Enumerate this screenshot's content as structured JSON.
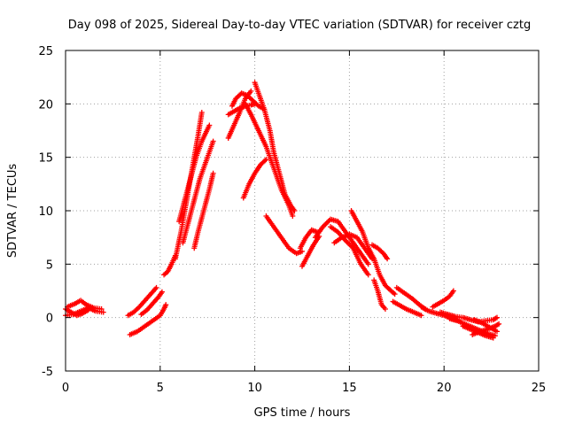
{
  "chart_data": {
    "type": "scatter",
    "title": "Day 098 of 2025, Sidereal Day-to-day VTEC variation (SDTVAR) for receiver cztg",
    "xlabel": "GPS time / hours",
    "ylabel": "SDTVAR / TECUs",
    "xlim": [
      0,
      25
    ],
    "ylim": [
      -5,
      25
    ],
    "xticks": [
      0,
      5,
      10,
      15,
      20,
      25
    ],
    "yticks": [
      -5,
      0,
      5,
      10,
      15,
      20,
      25
    ],
    "grid": true,
    "marker": "+",
    "color": "#ff0000",
    "series": [
      {
        "name": "SDTVAR",
        "tracks": [
          [
            [
              0.0,
              0.2
            ],
            [
              0.4,
              0.3
            ],
            [
              0.8,
              0.6
            ],
            [
              1.2,
              0.9
            ],
            [
              1.6,
              0.6
            ],
            [
              2.0,
              0.5
            ]
          ],
          [
            [
              0.0,
              0.8
            ],
            [
              0.3,
              0.5
            ],
            [
              0.6,
              0.2
            ],
            [
              0.9,
              0.4
            ],
            [
              1.2,
              0.7
            ]
          ],
          [
            [
              0.1,
              1.0
            ],
            [
              0.5,
              1.3
            ],
            [
              0.8,
              1.6
            ],
            [
              1.1,
              1.2
            ],
            [
              1.5,
              0.9
            ],
            [
              1.9,
              0.8
            ]
          ],
          [
            [
              3.3,
              0.2
            ],
            [
              3.6,
              0.5
            ],
            [
              3.9,
              1.0
            ],
            [
              4.2,
              1.6
            ],
            [
              4.5,
              2.2
            ],
            [
              4.8,
              2.8
            ]
          ],
          [
            [
              3.4,
              -1.6
            ],
            [
              3.8,
              -1.3
            ],
            [
              4.2,
              -0.8
            ],
            [
              4.6,
              -0.3
            ],
            [
              5.0,
              0.2
            ],
            [
              5.2,
              0.8
            ],
            [
              5.3,
              1.2
            ]
          ],
          [
            [
              4.0,
              0.3
            ],
            [
              4.3,
              0.7
            ],
            [
              4.6,
              1.3
            ],
            [
              4.9,
              1.9
            ],
            [
              5.1,
              2.4
            ]
          ],
          [
            [
              5.2,
              4.0
            ],
            [
              5.4,
              4.3
            ],
            [
              5.6,
              5.0
            ],
            [
              5.8,
              5.8
            ]
          ],
          [
            [
              5.8,
              5.5
            ],
            [
              6.1,
              8.0
            ],
            [
              6.4,
              11.0
            ],
            [
              6.7,
              14.0
            ],
            [
              7.0,
              17.0
            ],
            [
              7.2,
              19.2
            ]
          ],
          [
            [
              6.0,
              9.0
            ],
            [
              6.3,
              11.0
            ],
            [
              6.6,
              13.0
            ],
            [
              6.9,
              15.0
            ],
            [
              7.2,
              16.5
            ],
            [
              7.6,
              18.0
            ]
          ],
          [
            [
              6.2,
              7.0
            ],
            [
              6.5,
              9.0
            ],
            [
              6.8,
              11.0
            ],
            [
              7.1,
              13.0
            ],
            [
              7.5,
              15.0
            ],
            [
              7.8,
              16.5
            ]
          ],
          [
            [
              6.8,
              6.5
            ],
            [
              7.0,
              8.0
            ],
            [
              7.3,
              10.0
            ],
            [
              7.6,
              12.0
            ],
            [
              7.8,
              13.5
            ]
          ],
          [
            [
              8.6,
              16.8
            ],
            [
              8.9,
              18.0
            ],
            [
              9.2,
              19.2
            ],
            [
              9.5,
              20.5
            ],
            [
              9.8,
              21.2
            ]
          ],
          [
            [
              8.8,
              19.8
            ],
            [
              9.0,
              20.5
            ],
            [
              9.3,
              21.0
            ],
            [
              9.6,
              20.8
            ],
            [
              9.9,
              20.3
            ],
            [
              10.2,
              19.8
            ],
            [
              10.5,
              19.5
            ]
          ],
          [
            [
              8.6,
              19.0
            ],
            [
              8.9,
              19.3
            ],
            [
              9.2,
              19.6
            ],
            [
              9.5,
              19.8
            ],
            [
              9.8,
              19.9
            ],
            [
              10.0,
              20.0
            ]
          ],
          [
            [
              9.4,
              11.2
            ],
            [
              9.7,
              12.5
            ],
            [
              10.0,
              13.5
            ],
            [
              10.3,
              14.3
            ],
            [
              10.6,
              14.8
            ]
          ],
          [
            [
              9.5,
              20.0
            ],
            [
              9.8,
              19.0
            ],
            [
              10.2,
              17.5
            ],
            [
              10.6,
              16.0
            ],
            [
              11.0,
              14.0
            ],
            [
              11.4,
              12.0
            ],
            [
              11.8,
              10.5
            ],
            [
              12.0,
              9.5
            ]
          ],
          [
            [
              10.0,
              22.0
            ],
            [
              10.2,
              21.0
            ],
            [
              10.5,
              19.5
            ],
            [
              10.8,
              17.5
            ],
            [
              11.0,
              15.5
            ],
            [
              11.3,
              13.5
            ],
            [
              11.6,
              11.5
            ],
            [
              11.9,
              10.5
            ],
            [
              12.1,
              10.0
            ]
          ],
          [
            [
              10.6,
              9.5
            ],
            [
              11.0,
              8.5
            ],
            [
              11.4,
              7.5
            ],
            [
              11.8,
              6.5
            ],
            [
              12.2,
              6.0
            ],
            [
              12.5,
              6.2
            ]
          ],
          [
            [
              12.4,
              6.5
            ],
            [
              12.7,
              7.5
            ],
            [
              13.0,
              8.2
            ],
            [
              13.3,
              8.0
            ]
          ],
          [
            [
              12.5,
              4.8
            ],
            [
              12.8,
              5.8
            ],
            [
              13.1,
              6.8
            ],
            [
              13.4,
              7.6
            ]
          ],
          [
            [
              13.2,
              7.5
            ],
            [
              13.6,
              8.5
            ],
            [
              14.0,
              9.2
            ],
            [
              14.4,
              9.0
            ],
            [
              14.8,
              8.0
            ],
            [
              15.2,
              7.0
            ],
            [
              15.6,
              6.0
            ],
            [
              16.0,
              5.0
            ]
          ],
          [
            [
              14.0,
              8.5
            ],
            [
              14.4,
              8.0
            ],
            [
              14.8,
              7.2
            ],
            [
              15.2,
              6.5
            ],
            [
              15.6,
              5.0
            ],
            [
              16.0,
              4.0
            ]
          ],
          [
            [
              14.2,
              7.0
            ],
            [
              14.6,
              7.5
            ],
            [
              15.0,
              7.8
            ],
            [
              15.4,
              7.5
            ],
            [
              15.8,
              6.5
            ],
            [
              16.2,
              5.5
            ]
          ],
          [
            [
              15.1,
              10.0
            ],
            [
              15.4,
              9.0
            ],
            [
              15.7,
              8.0
            ],
            [
              15.9,
              7.0
            ],
            [
              16.1,
              6.0
            ]
          ],
          [
            [
              16.0,
              6.5
            ],
            [
              16.3,
              5.5
            ],
            [
              16.6,
              4.0
            ],
            [
              16.9,
              3.0
            ],
            [
              17.2,
              2.5
            ],
            [
              17.4,
              2.2
            ]
          ],
          [
            [
              16.2,
              6.8
            ],
            [
              16.5,
              6.5
            ],
            [
              16.8,
              6.0
            ],
            [
              17.0,
              5.5
            ]
          ],
          [
            [
              16.3,
              3.5
            ],
            [
              16.5,
              2.5
            ],
            [
              16.7,
              1.2
            ],
            [
              16.9,
              0.8
            ]
          ],
          [
            [
              17.3,
              1.5
            ],
            [
              17.6,
              1.2
            ],
            [
              18.0,
              0.8
            ],
            [
              18.4,
              0.5
            ],
            [
              18.8,
              0.2
            ]
          ],
          [
            [
              17.5,
              2.8
            ],
            [
              17.9,
              2.3
            ],
            [
              18.3,
              1.8
            ],
            [
              18.7,
              1.2
            ],
            [
              19.0,
              0.8
            ]
          ],
          [
            [
              18.8,
              1.0
            ],
            [
              19.2,
              0.6
            ],
            [
              19.6,
              0.4
            ],
            [
              20.0,
              0.2
            ],
            [
              20.4,
              -0.1
            ],
            [
              20.8,
              -0.3
            ]
          ],
          [
            [
              19.4,
              1.0
            ],
            [
              19.7,
              1.3
            ],
            [
              20.0,
              1.6
            ],
            [
              20.3,
              2.0
            ],
            [
              20.5,
              2.5
            ]
          ],
          [
            [
              19.8,
              0.5
            ],
            [
              20.2,
              0.3
            ],
            [
              20.6,
              0.1
            ],
            [
              21.0,
              0.0
            ],
            [
              21.4,
              -0.2
            ],
            [
              21.8,
              -0.4
            ],
            [
              22.2,
              -0.3
            ],
            [
              22.6,
              -0.2
            ],
            [
              22.8,
              0.0
            ]
          ],
          [
            [
              20.3,
              -0.1
            ],
            [
              20.7,
              -0.3
            ],
            [
              21.1,
              -0.6
            ],
            [
              21.5,
              -0.9
            ],
            [
              21.9,
              -1.2
            ],
            [
              22.3,
              -1.5
            ],
            [
              22.7,
              -1.7
            ]
          ],
          [
            [
              21.0,
              -0.8
            ],
            [
              21.4,
              -1.1
            ],
            [
              21.8,
              -1.4
            ],
            [
              22.2,
              -1.7
            ],
            [
              22.6,
              -1.9
            ]
          ],
          [
            [
              21.6,
              -0.2
            ],
            [
              22.0,
              -0.5
            ],
            [
              22.4,
              -0.9
            ],
            [
              22.8,
              -1.3
            ]
          ],
          [
            [
              21.5,
              -1.6
            ],
            [
              21.9,
              -1.3
            ],
            [
              22.3,
              -1.1
            ],
            [
              22.7,
              -0.8
            ],
            [
              22.9,
              -0.6
            ]
          ]
        ]
      }
    ]
  }
}
